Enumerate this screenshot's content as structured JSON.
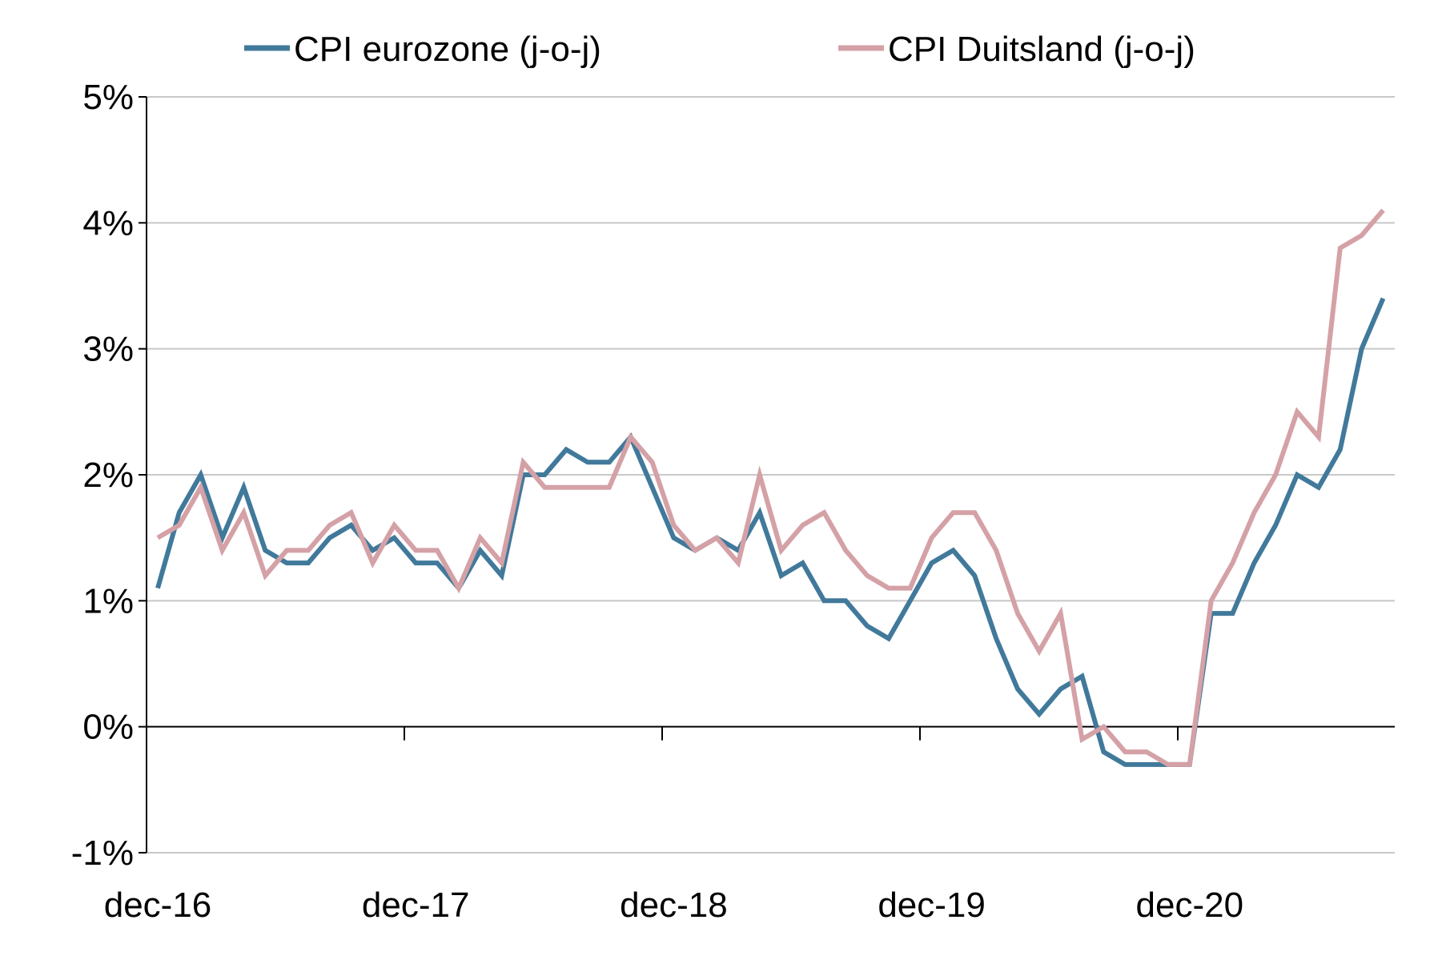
{
  "chart_data": {
    "type": "line",
    "title": "",
    "xlabel": "",
    "ylabel": "",
    "x_tick_labels": [
      "dec-16",
      "dec-17",
      "dec-18",
      "dec-19",
      "dec-20"
    ],
    "y_tick_labels": [
      "-1%",
      "0%",
      "1%",
      "2%",
      "3%",
      "4%",
      "5%"
    ],
    "y_ticks": [
      -1,
      0,
      1,
      2,
      3,
      4,
      5
    ],
    "ylim": [
      -1,
      5
    ],
    "x_start": "dec-16",
    "x_end": "sep-21",
    "x_frequency": "monthly",
    "grid": true,
    "legend_position": "top",
    "series": [
      {
        "name": "CPI eurozone (j-o-j)",
        "color": "#41799B",
        "values": [
          1.1,
          1.7,
          2.0,
          1.5,
          1.9,
          1.4,
          1.3,
          1.3,
          1.5,
          1.6,
          1.4,
          1.5,
          1.3,
          1.3,
          1.1,
          1.4,
          1.2,
          2.0,
          2.0,
          2.2,
          2.1,
          2.1,
          2.3,
          1.9,
          1.5,
          1.4,
          1.5,
          1.4,
          1.7,
          1.2,
          1.3,
          1.0,
          1.0,
          0.8,
          0.7,
          1.0,
          1.3,
          1.4,
          1.2,
          0.7,
          0.3,
          0.1,
          0.3,
          0.4,
          -0.2,
          -0.3,
          -0.3,
          -0.3,
          -0.3,
          0.9,
          0.9,
          1.3,
          1.6,
          2.0,
          1.9,
          2.2,
          3.0,
          3.4
        ]
      },
      {
        "name": "CPI Duitsland (j-o-j)",
        "color": "#D4A1A6",
        "values": [
          1.5,
          1.6,
          1.9,
          1.4,
          1.7,
          1.2,
          1.4,
          1.4,
          1.6,
          1.7,
          1.3,
          1.6,
          1.4,
          1.4,
          1.1,
          1.5,
          1.3,
          2.1,
          1.9,
          1.9,
          1.9,
          1.9,
          2.3,
          2.1,
          1.6,
          1.4,
          1.5,
          1.3,
          2.0,
          1.4,
          1.6,
          1.7,
          1.4,
          1.2,
          1.1,
          1.1,
          1.5,
          1.7,
          1.7,
          1.4,
          0.9,
          0.6,
          0.9,
          -0.1,
          0.0,
          -0.2,
          -0.2,
          -0.3,
          -0.3,
          1.0,
          1.3,
          1.7,
          2.0,
          2.5,
          2.3,
          3.8,
          3.9,
          4.1
        ]
      }
    ]
  }
}
